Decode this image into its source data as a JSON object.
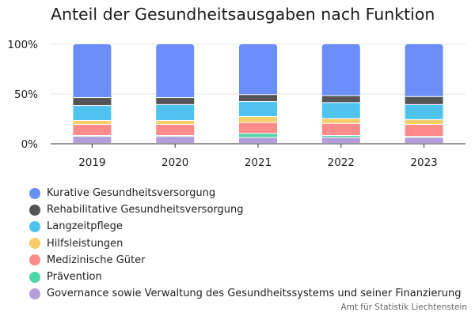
{
  "chart_data": {
    "type": "bar",
    "stacked": true,
    "title": "Anteil der Gesundheitsausgaben nach Funktion",
    "source": "Amt für Statistik Liechtenstein",
    "categories": [
      "2019",
      "2020",
      "2021",
      "2022",
      "2023"
    ],
    "y_ticks": [
      "0%",
      "50%",
      "100%"
    ],
    "ylim": [
      0,
      100
    ],
    "y_unit": "%",
    "grid": true,
    "legend_position": "bottom",
    "series": [
      {
        "name": "Governance sowie Verwaltung des Gesundheitssystems und seiner Finanzierung",
        "color": "#b39ddb",
        "values": [
          7,
          7,
          6,
          6,
          6
        ]
      },
      {
        "name": "Prävention",
        "color": "#4fd6a8",
        "values": [
          1,
          1,
          4,
          2,
          1
        ]
      },
      {
        "name": "Medizinische Güter",
        "color": "#ff8a8a",
        "values": [
          11,
          11,
          11,
          12,
          12
        ]
      },
      {
        "name": "Hilfsleistungen",
        "color": "#f7cd6a",
        "values": [
          4,
          4,
          6,
          5,
          5
        ]
      },
      {
        "name": "Langzeitpflege",
        "color": "#4fc3f0",
        "values": [
          15,
          16,
          15,
          16,
          15
        ]
      },
      {
        "name": "Rehabilitative Gesundheitsversorgung",
        "color": "#555555",
        "values": [
          8,
          7,
          7,
          7,
          8
        ]
      },
      {
        "name": "Kurative Gesundheitsversorgung",
        "color": "#6b8ff8",
        "values": [
          54,
          54,
          51,
          52,
          53
        ]
      }
    ]
  }
}
